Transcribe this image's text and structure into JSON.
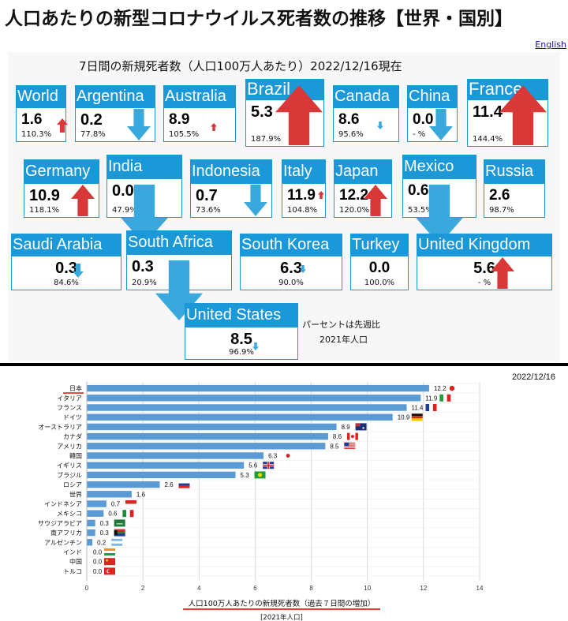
{
  "header": {
    "title": "人口あたりの新型コロナウイルス死者数の推移【世界・国別】",
    "english_link": "English"
  },
  "panel": {
    "subtitle": "7日間の新規死者数（人口100万人あたり）2022/12/16現在",
    "note_line1": "パーセントは先週比",
    "note_line2": "2021年人口"
  },
  "tiles": [
    {
      "name": "World",
      "value": "1.6",
      "pct": "110.3%",
      "trend": "up",
      "size": "small"
    },
    {
      "name": "Argentina",
      "value": "0.2",
      "pct": "77.8%",
      "trend": "down",
      "size": "medium"
    },
    {
      "name": "Australia",
      "value": "8.9",
      "pct": "105.5%",
      "trend": "up",
      "size": "tiny"
    },
    {
      "name": "Brazil",
      "value": "5.3",
      "pct": "187.9%",
      "trend": "up",
      "size": "large"
    },
    {
      "name": "Canada",
      "value": "8.6",
      "pct": "95.6%",
      "trend": "down",
      "size": "tiny"
    },
    {
      "name": "China",
      "value": "0.0",
      "pct": "- %",
      "trend": "down",
      "size": "medium"
    },
    {
      "name": "France",
      "value": "11.4",
      "pct": "144.4%",
      "trend": "up",
      "size": "large"
    },
    {
      "name": "Germany",
      "value": "10.9",
      "pct": "118.1%",
      "trend": "up",
      "size": "medium"
    },
    {
      "name": "India",
      "value": "0.0",
      "pct": "47.9%",
      "trend": "down",
      "size": "large"
    },
    {
      "name": "Indonesia",
      "value": "0.7",
      "pct": "73.6%",
      "trend": "down",
      "size": "medium"
    },
    {
      "name": "Italy",
      "value": "11.9",
      "pct": "104.8%",
      "trend": "up",
      "size": "tiny"
    },
    {
      "name": "Japan",
      "value": "12.2",
      "pct": "120.0%",
      "trend": "up",
      "size": "medium"
    },
    {
      "name": "Mexico",
      "value": "0.6",
      "pct": "53.5%",
      "trend": "down",
      "size": "large"
    },
    {
      "name": "Russia",
      "value": "2.6",
      "pct": "98.7%",
      "trend": "none",
      "size": "none"
    },
    {
      "name": "Saudi Arabia",
      "value": "0.3",
      "pct": "84.6%",
      "trend": "down",
      "size": "small"
    },
    {
      "name": "South Africa",
      "value": "0.3",
      "pct": "20.9%",
      "trend": "down",
      "size": "large"
    },
    {
      "name": "South Korea",
      "value": "6.3",
      "pct": "90.0%",
      "trend": "down",
      "size": "tiny"
    },
    {
      "name": "Turkey",
      "value": "0.0",
      "pct": "100.0%",
      "trend": "none",
      "size": "none"
    },
    {
      "name": "United Kingdom",
      "value": "5.6",
      "pct": "- %",
      "trend": "up",
      "size": "medium"
    },
    {
      "name": "United States",
      "value": "8.5",
      "pct": "96.9%",
      "trend": "down",
      "size": "tiny"
    }
  ],
  "colors": {
    "tile_header": "#1b98d8",
    "arrow_up": "#d93838",
    "arrow_down": "#39a8dc",
    "bar": "#5b9bd5",
    "underline_red": "#e0201b"
  },
  "chart_data": {
    "type": "bar",
    "orientation": "horizontal",
    "date": "2022/12/16",
    "categories": [
      "日本",
      "イタリア",
      "フランス",
      "ドイツ",
      "オーストラリア",
      "カナダ",
      "アメリカ",
      "韓国",
      "イギリス",
      "ブラジル",
      "ロシア",
      "世界",
      "インドネシア",
      "メキシコ",
      "サウジアラビア",
      "南アフリカ",
      "アルゼンチン",
      "インド",
      "中国",
      "トルコ"
    ],
    "values": [
      12.2,
      11.9,
      11.4,
      10.9,
      8.9,
      8.6,
      8.5,
      6.3,
      5.6,
      5.3,
      2.6,
      1.6,
      0.7,
      0.6,
      0.3,
      0.3,
      0.2,
      0.0,
      0.0,
      0.0
    ],
    "flags": [
      "japan-flag",
      "italy-flag",
      "france-flag",
      "germany-flag",
      "australia-flag",
      "canada-flag",
      "usa-flag",
      "korea-flag",
      "uk-flag",
      "brazil-flag",
      "russia-flag",
      "",
      "indonesia-flag",
      "mexico-flag",
      "saudi-flag",
      "south-africa-flag",
      "argentina-flag",
      "india-flag",
      "china-flag",
      "turkey-flag"
    ],
    "xlim": [
      0,
      14
    ],
    "xticks": [
      0,
      2,
      4,
      6,
      8,
      10,
      12,
      14
    ],
    "xlabel": "人口100万人あたりの新規死者数（過去７日間の増加）",
    "xlabel_note": "[2021年人口]",
    "grid": "vertical",
    "highlight": "日本"
  }
}
